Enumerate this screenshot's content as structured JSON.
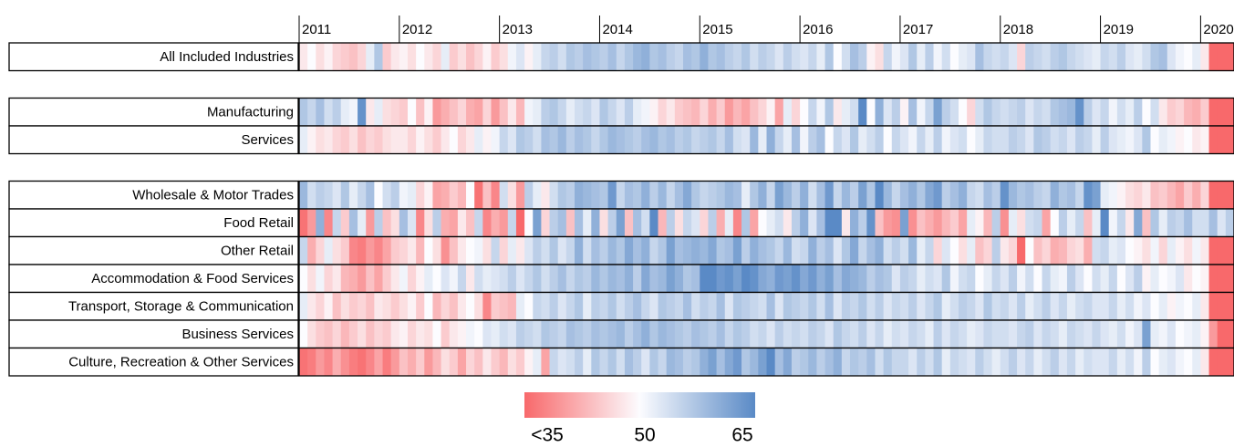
{
  "chart_data": {
    "type": "heatmap",
    "xlim": [
      0,
      112
    ],
    "xticks": [
      {
        "value": 0,
        "label": "2011"
      },
      {
        "value": 12,
        "label": "2012"
      },
      {
        "value": 24,
        "label": "2013"
      },
      {
        "value": 36,
        "label": "2014"
      },
      {
        "value": 48,
        "label": "2015"
      },
      {
        "value": 60,
        "label": "2016"
      },
      {
        "value": 72,
        "label": "2017"
      },
      {
        "value": 84,
        "label": "2018"
      },
      {
        "value": 96,
        "label": "2019"
      },
      {
        "value": 108,
        "label": "2020"
      }
    ],
    "clim": [
      35,
      65
    ],
    "colors": [
      "#f8696b",
      "#fcfcff",
      "#5a8ac6"
    ],
    "colorbar_ticks": [
      {
        "value": 35,
        "label": "<35"
      },
      50,
      65
    ],
    "groups": [
      [
        {
          "name": "All Included Industries",
          "values": [
            48,
            50,
            47,
            49,
            46,
            45,
            44,
            46,
            52,
            57,
            45,
            48,
            49,
            47,
            50,
            48,
            46,
            52,
            45,
            47,
            44,
            46,
            49,
            45,
            47,
            51,
            53,
            49,
            52,
            55,
            56,
            54,
            57,
            56,
            58,
            57,
            56,
            58,
            55,
            57,
            59,
            60,
            57,
            58,
            56,
            55,
            58,
            57,
            60,
            57,
            58,
            56,
            55,
            57,
            54,
            56,
            55,
            53,
            56,
            54,
            53,
            55,
            52,
            57,
            50,
            54,
            58,
            56,
            49,
            47,
            55,
            51,
            53,
            57,
            52,
            56,
            51,
            54,
            50,
            52,
            53,
            58,
            55,
            54,
            55,
            53,
            46,
            56,
            55,
            54,
            56,
            57,
            55,
            54,
            53,
            52,
            55,
            54,
            56,
            53,
            52,
            54,
            57,
            58,
            53,
            51,
            50,
            52,
            48,
            28,
            28,
            28
          ]
        }
      ],
      [
        {
          "name": "Manufacturing",
          "values": [
            57,
            55,
            58,
            54,
            56,
            52,
            51,
            64,
            48,
            52,
            47,
            46,
            45,
            50,
            44,
            49,
            40,
            42,
            44,
            46,
            42,
            41,
            46,
            40,
            44,
            48,
            43,
            51,
            52,
            56,
            57,
            55,
            52,
            54,
            55,
            53,
            57,
            55,
            53,
            56,
            52,
            51,
            49,
            46,
            48,
            45,
            44,
            43,
            46,
            42,
            45,
            40,
            43,
            41,
            44,
            46,
            49,
            41,
            52,
            46,
            50,
            55,
            51,
            57,
            48,
            52,
            54,
            65,
            50,
            60,
            53,
            56,
            49,
            58,
            51,
            55,
            62,
            56,
            54,
            50,
            46,
            54,
            57,
            55,
            54,
            55,
            56,
            53,
            55,
            54,
            57,
            58,
            59,
            64,
            56,
            53,
            55,
            51,
            54,
            52,
            56,
            50,
            54,
            48,
            45,
            46,
            43,
            42,
            45,
            26,
            26,
            26
          ]
        },
        {
          "name": "Services",
          "values": [
            52,
            49,
            47,
            48,
            46,
            45,
            47,
            44,
            46,
            45,
            47,
            48,
            48,
            46,
            49,
            47,
            45,
            48,
            50,
            46,
            48,
            52,
            49,
            51,
            55,
            53,
            57,
            56,
            54,
            58,
            57,
            59,
            56,
            58,
            57,
            55,
            57,
            59,
            58,
            57,
            56,
            58,
            59,
            57,
            58,
            56,
            57,
            55,
            56,
            57,
            55,
            58,
            54,
            53,
            59,
            52,
            60,
            55,
            52,
            58,
            51,
            56,
            58,
            50,
            55,
            53,
            57,
            52,
            54,
            56,
            50,
            55,
            53,
            51,
            55,
            52,
            56,
            51,
            53,
            54,
            50,
            52,
            55,
            54,
            54,
            56,
            55,
            53,
            57,
            56,
            54,
            55,
            53,
            56,
            55,
            52,
            56,
            53,
            52,
            51,
            53,
            57,
            50,
            52,
            51,
            49,
            50,
            48,
            49,
            27,
            27,
            27
          ]
        }
      ],
      [
        {
          "name": "Wholesale & Motor Trades",
          "values": [
            59,
            54,
            56,
            55,
            53,
            57,
            52,
            55,
            58,
            50,
            54,
            56,
            51,
            52,
            46,
            49,
            41,
            42,
            45,
            43,
            50,
            36,
            44,
            38,
            54,
            47,
            40,
            56,
            52,
            48,
            54,
            57,
            56,
            60,
            59,
            58,
            57,
            63,
            55,
            58,
            57,
            60,
            56,
            59,
            55,
            58,
            61,
            57,
            55,
            56,
            57,
            59,
            58,
            52,
            57,
            60,
            55,
            62,
            59,
            56,
            60,
            54,
            58,
            63,
            55,
            59,
            56,
            62,
            57,
            65,
            59,
            55,
            58,
            60,
            57,
            61,
            63,
            56,
            58,
            60,
            55,
            54,
            58,
            56,
            64,
            59,
            57,
            58,
            56,
            55,
            60,
            57,
            58,
            55,
            64,
            62,
            52,
            51,
            49,
            47,
            46,
            48,
            44,
            45,
            43,
            41,
            45,
            42,
            46,
            27,
            27,
            27
          ]
        },
        {
          "name": "Food Retail",
          "values": [
            36,
            40,
            60,
            38,
            55,
            45,
            58,
            52,
            40,
            56,
            44,
            47,
            58,
            53,
            38,
            47,
            56,
            42,
            41,
            48,
            44,
            55,
            38,
            42,
            40,
            55,
            35,
            50,
            62,
            46,
            56,
            58,
            44,
            58,
            52,
            60,
            47,
            56,
            62,
            44,
            58,
            54,
            65,
            43,
            56,
            47,
            55,
            53,
            46,
            56,
            42,
            52,
            38,
            57,
            41,
            50,
            52,
            54,
            48,
            56,
            60,
            53,
            58,
            65,
            65,
            48,
            60,
            56,
            64,
            44,
            40,
            39,
            62,
            39,
            44,
            42,
            40,
            43,
            45,
            41,
            52,
            49,
            43,
            56,
            39,
            52,
            47,
            54,
            55,
            41,
            50,
            56,
            52,
            55,
            44,
            52,
            65,
            51,
            55,
            48,
            61,
            44,
            57,
            52,
            56,
            55,
            58,
            54,
            54,
            58,
            53,
            56
          ]
        },
        {
          "name": "Other Retail",
          "values": [
            55,
            42,
            46,
            52,
            47,
            45,
            38,
            37,
            40,
            38,
            41,
            45,
            46,
            48,
            43,
            50,
            47,
            39,
            44,
            48,
            50,
            51,
            47,
            55,
            46,
            52,
            48,
            53,
            56,
            54,
            57,
            53,
            55,
            60,
            54,
            58,
            56,
            59,
            57,
            61,
            58,
            60,
            55,
            57,
            62,
            58,
            59,
            60,
            59,
            61,
            57,
            58,
            62,
            56,
            60,
            58,
            57,
            55,
            59,
            54,
            55,
            60,
            56,
            58,
            53,
            57,
            61,
            55,
            58,
            60,
            54,
            56,
            54,
            59,
            52,
            55,
            46,
            53,
            50,
            47,
            52,
            44,
            46,
            56,
            48,
            46,
            35,
            50,
            44,
            46,
            42,
            43,
            46,
            47,
            42,
            54,
            55,
            52,
            53,
            50,
            49,
            47,
            51,
            46,
            52,
            49,
            47,
            51,
            48,
            26,
            26,
            26
          ]
        },
        {
          "name": "Accommodation & Food Services",
          "values": [
            50,
            47,
            51,
            46,
            48,
            43,
            42,
            40,
            44,
            41,
            45,
            48,
            51,
            46,
            49,
            52,
            50,
            53,
            51,
            55,
            48,
            54,
            52,
            53,
            54,
            56,
            53,
            55,
            57,
            54,
            56,
            58,
            55,
            57,
            56,
            59,
            57,
            59,
            58,
            60,
            56,
            61,
            58,
            59,
            62,
            60,
            57,
            58,
            65,
            65,
            63,
            64,
            62,
            65,
            64,
            61,
            60,
            63,
            62,
            64,
            61,
            63,
            60,
            62,
            58,
            61,
            60,
            59,
            56,
            58,
            57,
            53,
            56,
            55,
            52,
            54,
            53,
            57,
            51,
            54,
            55,
            50,
            52,
            55,
            53,
            56,
            51,
            54,
            50,
            55,
            52,
            51,
            56,
            53,
            50,
            54,
            52,
            55,
            50,
            53,
            56,
            49,
            52,
            50,
            51,
            53,
            48,
            50,
            49,
            26,
            26,
            26
          ]
        },
        {
          "name": "Transport, Storage & Communication",
          "values": [
            52,
            48,
            46,
            49,
            44,
            47,
            45,
            46,
            44,
            48,
            47,
            45,
            47,
            49,
            45,
            50,
            43,
            46,
            44,
            48,
            50,
            47,
            38,
            45,
            44,
            43,
            52,
            50,
            55,
            54,
            56,
            53,
            55,
            57,
            52,
            56,
            55,
            57,
            54,
            56,
            58,
            55,
            53,
            57,
            56,
            55,
            58,
            54,
            56,
            55,
            58,
            53,
            57,
            56,
            55,
            54,
            58,
            53,
            57,
            56,
            55,
            57,
            54,
            58,
            53,
            56,
            55,
            57,
            54,
            56,
            53,
            55,
            54,
            56,
            53,
            55,
            57,
            52,
            54,
            56,
            55,
            53,
            57,
            54,
            55,
            53,
            56,
            52,
            54,
            56,
            53,
            55,
            52,
            54,
            55,
            53,
            53,
            55,
            52,
            54,
            51,
            53,
            50,
            52,
            49,
            51,
            50,
            52,
            48,
            27,
            27,
            27
          ]
        },
        {
          "name": "Business Services",
          "values": [
            50,
            47,
            45,
            44,
            46,
            43,
            45,
            47,
            44,
            46,
            45,
            48,
            49,
            46,
            48,
            47,
            50,
            45,
            48,
            49,
            51,
            50,
            53,
            52,
            54,
            53,
            56,
            55,
            54,
            57,
            56,
            55,
            58,
            57,
            56,
            58,
            57,
            58,
            59,
            56,
            58,
            60,
            57,
            59,
            58,
            57,
            56,
            58,
            57,
            56,
            58,
            55,
            57,
            56,
            54,
            55,
            53,
            56,
            54,
            55,
            54,
            56,
            55,
            53,
            57,
            55,
            54,
            56,
            53,
            55,
            52,
            54,
            53,
            55,
            54,
            52,
            56,
            53,
            55,
            54,
            52,
            53,
            55,
            54,
            54,
            53,
            55,
            56,
            53,
            55,
            54,
            52,
            55,
            54,
            53,
            55,
            53,
            52,
            54,
            51,
            53,
            62,
            52,
            51,
            53,
            50,
            51,
            52,
            49,
            40,
            28,
            28
          ]
        },
        {
          "name": "Culture, Recreation & Other Services",
          "values": [
            36,
            37,
            40,
            38,
            42,
            39,
            37,
            36,
            38,
            41,
            37,
            40,
            44,
            42,
            45,
            40,
            43,
            47,
            45,
            41,
            46,
            44,
            48,
            45,
            43,
            47,
            45,
            49,
            52,
            41,
            55,
            53,
            54,
            56,
            52,
            57,
            55,
            57,
            54,
            58,
            56,
            53,
            57,
            55,
            59,
            58,
            56,
            57,
            60,
            62,
            58,
            61,
            63,
            57,
            59,
            62,
            65,
            58,
            61,
            56,
            57,
            59,
            56,
            58,
            60,
            55,
            57,
            56,
            58,
            54,
            57,
            55,
            55,
            53,
            56,
            54,
            57,
            52,
            55,
            54,
            53,
            56,
            54,
            52,
            54,
            56,
            53,
            55,
            52,
            54,
            56,
            53,
            55,
            52,
            54,
            53,
            53,
            55,
            52,
            54,
            51,
            56,
            50,
            52,
            53,
            51,
            50,
            52,
            48,
            27,
            27,
            27
          ]
        }
      ]
    ]
  }
}
